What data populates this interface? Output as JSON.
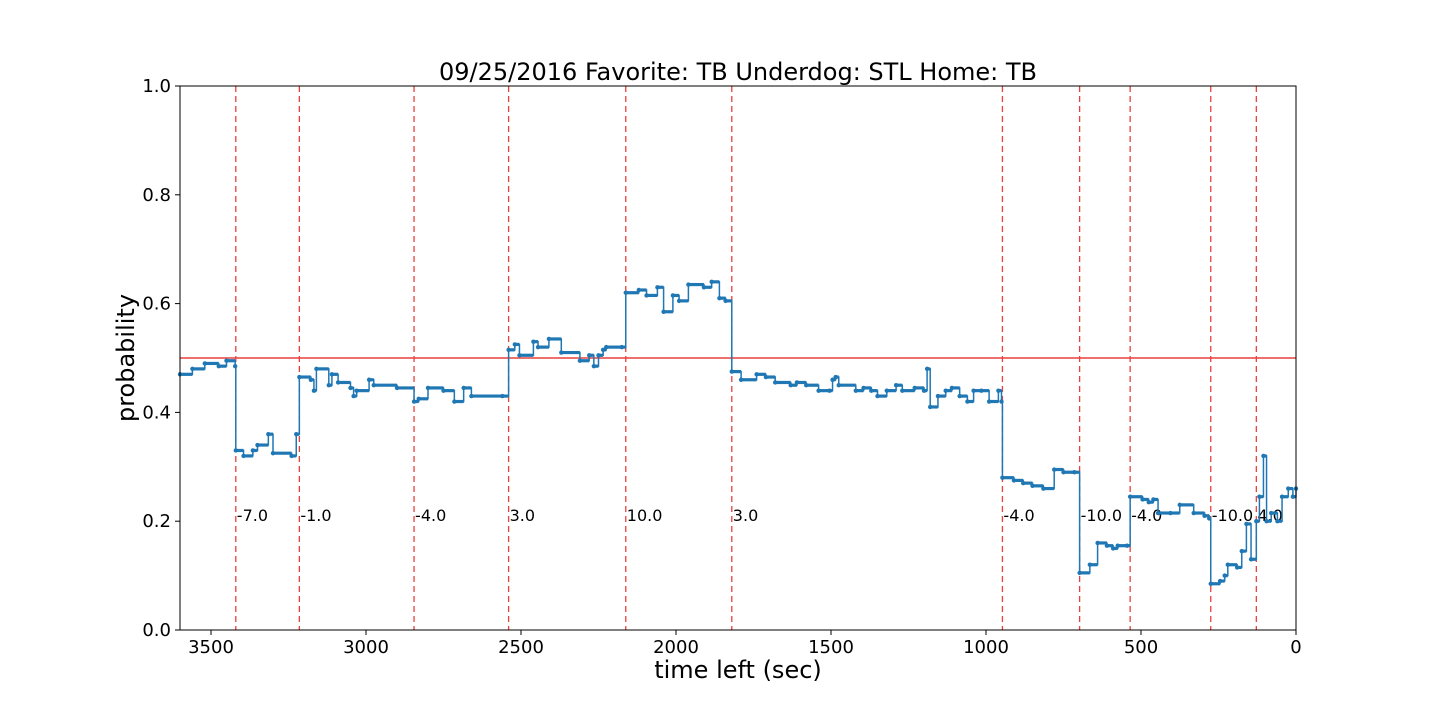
{
  "chart_data": {
    "type": "line",
    "title": "09/25/2016 Favorite: TB Underdog: STL Home: TB",
    "xlabel": "time left (sec)",
    "ylabel": "probability",
    "xlim": [
      3600,
      0
    ],
    "ylim": [
      0.0,
      1.0
    ],
    "x_reversed": true,
    "x_ticks": [
      3500,
      3000,
      2500,
      2000,
      1500,
      1000,
      500,
      0
    ],
    "y_ticks": [
      0.0,
      0.2,
      0.4,
      0.6,
      0.8,
      1.0
    ],
    "x_tick_labels": [
      "3500",
      "3000",
      "2500",
      "2000",
      "1500",
      "1000",
      "500",
      "0"
    ],
    "y_tick_labels": [
      "0.0",
      "0.2",
      "0.4",
      "0.6",
      "0.8",
      "1.0"
    ],
    "grid": false,
    "reference_line": {
      "y": 0.5,
      "color": "#e8413c"
    },
    "line_color": "#1f77b4",
    "scoring_color": "#e8413c",
    "scoring_events": [
      {
        "x": 3420,
        "label": "-7.0"
      },
      {
        "x": 3215,
        "label": "-1.0"
      },
      {
        "x": 2845,
        "label": "-4.0"
      },
      {
        "x": 2540,
        "label": "3.0"
      },
      {
        "x": 2162,
        "label": "10.0"
      },
      {
        "x": 1820,
        "label": "3.0"
      },
      {
        "x": 947,
        "label": "-4.0"
      },
      {
        "x": 698,
        "label": "-10.0"
      },
      {
        "x": 535,
        "label": "-4.0"
      },
      {
        "x": 275,
        "label": "-10.0"
      },
      {
        "x": 128,
        "label": "4.0"
      }
    ],
    "series": [
      {
        "values": [
          [
            3600,
            0.47
          ],
          [
            3560,
            0.48
          ],
          [
            3520,
            0.49
          ],
          [
            3475,
            0.485
          ],
          [
            3450,
            0.495
          ],
          [
            3422,
            0.485
          ],
          [
            3420,
            0.33
          ],
          [
            3395,
            0.32
          ],
          [
            3365,
            0.33
          ],
          [
            3350,
            0.34
          ],
          [
            3315,
            0.36
          ],
          [
            3300,
            0.325
          ],
          [
            3240,
            0.32
          ],
          [
            3225,
            0.36
          ],
          [
            3215,
            0.465
          ],
          [
            3178,
            0.46
          ],
          [
            3168,
            0.44
          ],
          [
            3160,
            0.48
          ],
          [
            3120,
            0.45
          ],
          [
            3110,
            0.47
          ],
          [
            3090,
            0.455
          ],
          [
            3050,
            0.445
          ],
          [
            3040,
            0.43
          ],
          [
            3030,
            0.44
          ],
          [
            2990,
            0.46
          ],
          [
            2975,
            0.45
          ],
          [
            2900,
            0.445
          ],
          [
            2845,
            0.42
          ],
          [
            2830,
            0.425
          ],
          [
            2800,
            0.445
          ],
          [
            2750,
            0.44
          ],
          [
            2715,
            0.42
          ],
          [
            2685,
            0.445
          ],
          [
            2660,
            0.43
          ],
          [
            2560,
            0.43
          ],
          [
            2540,
            0.515
          ],
          [
            2520,
            0.525
          ],
          [
            2505,
            0.505
          ],
          [
            2460,
            0.53
          ],
          [
            2445,
            0.52
          ],
          [
            2410,
            0.535
          ],
          [
            2370,
            0.51
          ],
          [
            2310,
            0.495
          ],
          [
            2280,
            0.505
          ],
          [
            2265,
            0.485
          ],
          [
            2250,
            0.505
          ],
          [
            2235,
            0.515
          ],
          [
            2225,
            0.52
          ],
          [
            2175,
            0.52
          ],
          [
            2162,
            0.62
          ],
          [
            2120,
            0.625
          ],
          [
            2095,
            0.615
          ],
          [
            2060,
            0.63
          ],
          [
            2040,
            0.585
          ],
          [
            2010,
            0.615
          ],
          [
            1990,
            0.605
          ],
          [
            1960,
            0.635
          ],
          [
            1910,
            0.63
          ],
          [
            1885,
            0.64
          ],
          [
            1860,
            0.61
          ],
          [
            1840,
            0.605
          ],
          [
            1820,
            0.475
          ],
          [
            1790,
            0.46
          ],
          [
            1740,
            0.47
          ],
          [
            1710,
            0.465
          ],
          [
            1680,
            0.455
          ],
          [
            1630,
            0.45
          ],
          [
            1610,
            0.455
          ],
          [
            1580,
            0.45
          ],
          [
            1540,
            0.44
          ],
          [
            1505,
            0.44
          ],
          [
            1495,
            0.46
          ],
          [
            1485,
            0.465
          ],
          [
            1475,
            0.45
          ],
          [
            1420,
            0.44
          ],
          [
            1395,
            0.445
          ],
          [
            1370,
            0.44
          ],
          [
            1350,
            0.43
          ],
          [
            1320,
            0.44
          ],
          [
            1290,
            0.45
          ],
          [
            1270,
            0.44
          ],
          [
            1230,
            0.445
          ],
          [
            1200,
            0.44
          ],
          [
            1190,
            0.48
          ],
          [
            1180,
            0.41
          ],
          [
            1155,
            0.43
          ],
          [
            1130,
            0.44
          ],
          [
            1110,
            0.445
          ],
          [
            1085,
            0.43
          ],
          [
            1060,
            0.42
          ],
          [
            1040,
            0.44
          ],
          [
            1015,
            0.44
          ],
          [
            990,
            0.42
          ],
          [
            960,
            0.44
          ],
          [
            950,
            0.42
          ],
          [
            947,
            0.28
          ],
          [
            910,
            0.275
          ],
          [
            880,
            0.27
          ],
          [
            850,
            0.265
          ],
          [
            815,
            0.26
          ],
          [
            780,
            0.295
          ],
          [
            750,
            0.29
          ],
          [
            715,
            0.29
          ],
          [
            698,
            0.105
          ],
          [
            665,
            0.12
          ],
          [
            640,
            0.16
          ],
          [
            610,
            0.155
          ],
          [
            590,
            0.15
          ],
          [
            575,
            0.155
          ],
          [
            545,
            0.155
          ],
          [
            535,
            0.245
          ],
          [
            495,
            0.24
          ],
          [
            475,
            0.235
          ],
          [
            460,
            0.24
          ],
          [
            445,
            0.215
          ],
          [
            405,
            0.215
          ],
          [
            375,
            0.23
          ],
          [
            330,
            0.215
          ],
          [
            295,
            0.21
          ],
          [
            280,
            0.205
          ],
          [
            275,
            0.085
          ],
          [
            245,
            0.09
          ],
          [
            230,
            0.1
          ],
          [
            220,
            0.12
          ],
          [
            190,
            0.115
          ],
          [
            175,
            0.145
          ],
          [
            160,
            0.195
          ],
          [
            145,
            0.13
          ],
          [
            128,
            0.2
          ],
          [
            118,
            0.245
          ],
          [
            105,
            0.32
          ],
          [
            95,
            0.2
          ],
          [
            80,
            0.215
          ],
          [
            60,
            0.2
          ],
          [
            45,
            0.245
          ],
          [
            25,
            0.26
          ],
          [
            10,
            0.245
          ],
          [
            0,
            0.26
          ]
        ]
      }
    ]
  }
}
